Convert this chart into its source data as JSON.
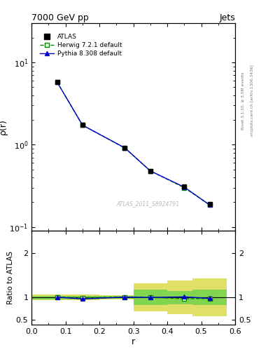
{
  "title_left": "7000 GeV pp",
  "title_right": "Jets",
  "right_label_top": "Rivet 3.1.10, ≥ 3.5M events",
  "right_label_bot": "mcplots.cern.ch [arXiv:1306.3436]",
  "watermark": "ATLAS_2011_S8924791",
  "ylabel_main": "ρ(r)",
  "ylabel_ratio": "Ratio to ATLAS",
  "xlabel": "r",
  "xlim": [
    0.0,
    0.6
  ],
  "ylim_main_log": [
    0.09,
    30.0
  ],
  "ylim_ratio": [
    0.38,
    2.5
  ],
  "r_values": [
    0.075,
    0.15,
    0.275,
    0.35,
    0.45,
    0.525
  ],
  "atlas_y": [
    5.8,
    1.75,
    0.92,
    0.48,
    0.31,
    0.19
  ],
  "atlas_yerr": [
    0.05,
    0.03,
    0.015,
    0.012,
    0.01,
    0.008
  ],
  "herwig_y": [
    5.8,
    1.73,
    0.91,
    0.48,
    0.3,
    0.185
  ],
  "pythia_y": [
    5.8,
    1.73,
    0.915,
    0.48,
    0.305,
    0.185
  ],
  "herwig_ratio": [
    1.002,
    0.99,
    1.005,
    0.998,
    0.97,
    0.974
  ],
  "pythia_ratio": [
    1.004,
    0.965,
    1.005,
    0.998,
    1.01,
    0.978
  ],
  "r_edges": [
    0.0,
    0.1,
    0.2,
    0.3,
    0.4,
    0.475,
    0.575
  ],
  "band_inner_lo": [
    0.96,
    0.96,
    0.97,
    0.82,
    0.85,
    0.83
  ],
  "band_inner_hi": [
    1.04,
    1.04,
    1.03,
    1.18,
    1.15,
    1.17
  ],
  "band_outer_lo": [
    0.93,
    0.94,
    0.95,
    0.68,
    0.62,
    0.58
  ],
  "band_outer_hi": [
    1.07,
    1.06,
    1.05,
    1.32,
    1.38,
    1.42
  ],
  "color_atlas": "#000000",
  "color_herwig": "#008800",
  "color_pythia": "#0000cc",
  "color_band_inner": "#44cc44",
  "color_band_outer": "#cccc00",
  "band_alpha": 0.6
}
